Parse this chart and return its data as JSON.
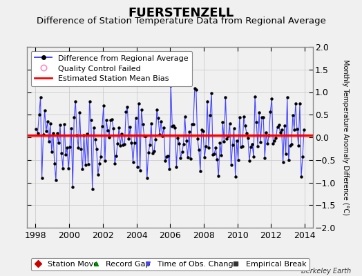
{
  "title": "FUERSTENZELL",
  "subtitle": "Difference of Station Temperature Data from Regional Average",
  "ylabel_right": "Monthly Temperature Anomaly Difference (°C)",
  "xlim": [
    1997.5,
    2014.5
  ],
  "ylim": [
    -2.0,
    2.0
  ],
  "yticks": [
    -2,
    -1.5,
    -1,
    -0.5,
    0,
    0.5,
    1,
    1.5,
    2
  ],
  "xticks": [
    1998,
    2000,
    2002,
    2004,
    2006,
    2008,
    2010,
    2012,
    2014
  ],
  "bias": 0.05,
  "line_color": "#4444ff",
  "marker_color": "#000000",
  "bias_color": "#ff0000",
  "plot_bg": "#f0f0f0",
  "fig_bg": "#f0f0f0",
  "title_fontsize": 13,
  "subtitle_fontsize": 9.5,
  "tick_fontsize": 9,
  "legend_fontsize": 8,
  "watermark": "Berkeley Earth",
  "seed": 42,
  "n_months": 192,
  "start_year": 1998,
  "start_month": 1
}
